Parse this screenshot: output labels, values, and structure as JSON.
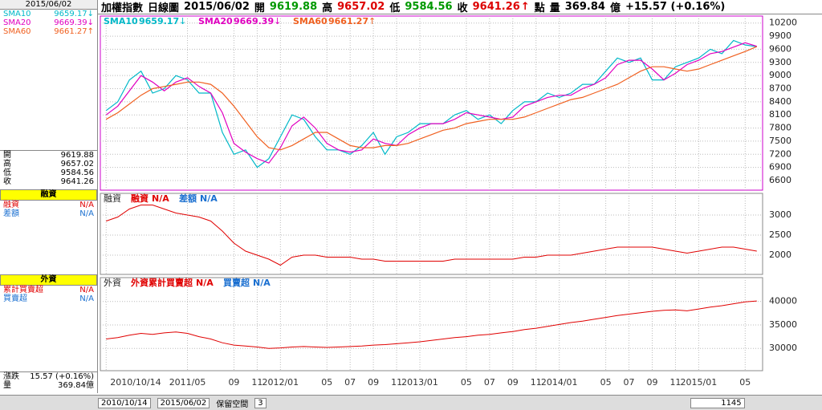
{
  "header": {
    "date": "2015/06/02",
    "open_label": "開",
    "open": 9619.88,
    "high_label": "高",
    "high": 9657.02,
    "low_label": "低",
    "low": 9584.56,
    "close_label": "收",
    "close": 9641.26,
    "close_arrow": "↑",
    "unit": "點",
    "volume_label": "量",
    "volume": 369.84,
    "volume_unit": "億",
    "change": "+15.57 (+0.16%)",
    "period": "日線圖"
  },
  "sidebar": {
    "date": "2015/06/02",
    "sma": [
      {
        "name": "SMA10",
        "value": 9659.17,
        "arrow": "↓"
      },
      {
        "name": "SMA20",
        "value": 9669.39,
        "arrow": "↓"
      },
      {
        "name": "SMA60",
        "value": 9661.27,
        "arrow": "↑"
      }
    ],
    "ohlc": [
      {
        "label": "開",
        "value": 9619.88
      },
      {
        "label": "高",
        "value": 9657.02
      },
      {
        "label": "低",
        "value": 9584.56
      },
      {
        "label": "收",
        "value": 9641.26
      }
    ],
    "margin_title": "融資",
    "margin_rows": [
      {
        "label": "融資",
        "value": "N/A"
      },
      {
        "label": "差額",
        "value": "N/A"
      }
    ],
    "foreign_title": "外資",
    "foreign_rows": [
      {
        "label": "累計買賣超",
        "value": "N/A"
      },
      {
        "label": "買賣超",
        "value": "N/A"
      }
    ],
    "change_label": "漲跌",
    "change": "15.57 (+0.16%)",
    "volume_label": "量",
    "volume": "369.84億"
  },
  "chart_data": [
    {
      "type": "line",
      "title": "加權指數",
      "categories": [
        "2010/10/14",
        null,
        null,
        null,
        null,
        null,
        null,
        "2011/05",
        null,
        null,
        null,
        "09",
        null,
        "11",
        null,
        "2012/01",
        null,
        null,
        null,
        "05",
        null,
        "07",
        null,
        "09",
        null,
        "11",
        null,
        "2013/01",
        null,
        null,
        null,
        "05",
        null,
        "07",
        null,
        "09",
        null,
        "11",
        null,
        "2014/01",
        null,
        null,
        null,
        "05",
        null,
        "07",
        null,
        "09",
        null,
        "11",
        null,
        "2015/01",
        null,
        null,
        null,
        "05",
        null
      ],
      "ylim": [
        6380,
        10360
      ],
      "yticks": [
        6600,
        6900,
        7200,
        7500,
        7800,
        8100,
        8400,
        8700,
        9000,
        9300,
        9600,
        9900,
        10200
      ],
      "grid": true,
      "series": [
        {
          "name": "SMA10",
          "color": "#00b8c8",
          "arrow": "↓",
          "values": [
            8200,
            8400,
            8900,
            9100,
            8600,
            8700,
            9000,
            8900,
            8600,
            8600,
            7700,
            7200,
            7300,
            6900,
            7100,
            7600,
            8100,
            8000,
            7600,
            7300,
            7300,
            7200,
            7400,
            7700,
            7200,
            7600,
            7700,
            7900,
            7900,
            7900,
            8100,
            8200,
            8000,
            8100,
            7900,
            8200,
            8400,
            8400,
            8600,
            8500,
            8600,
            8800,
            8800,
            9100,
            9400,
            9300,
            9400,
            8900,
            8900,
            9200,
            9300,
            9400,
            9600,
            9500,
            9800,
            9700,
            9659.17
          ]
        },
        {
          "name": "SMA20",
          "color": "#e000c0",
          "arrow": "↓",
          "values": [
            8100,
            8300,
            8650,
            9000,
            8850,
            8650,
            8850,
            8950,
            8750,
            8600,
            8150,
            7450,
            7250,
            7100,
            7000,
            7350,
            7850,
            8050,
            7800,
            7450,
            7300,
            7250,
            7300,
            7550,
            7450,
            7400,
            7650,
            7800,
            7900,
            7900,
            8000,
            8150,
            8100,
            8050,
            8000,
            8050,
            8300,
            8400,
            8500,
            8550,
            8550,
            8700,
            8800,
            8950,
            9250,
            9350,
            9350,
            9150,
            8900,
            9050,
            9250,
            9350,
            9500,
            9550,
            9650,
            9750,
            9669.39
          ]
        },
        {
          "name": "SMA60",
          "color": "#f06020",
          "arrow": "↑",
          "values": [
            8000,
            8150,
            8350,
            8550,
            8700,
            8750,
            8800,
            8850,
            8850,
            8800,
            8600,
            8300,
            7950,
            7600,
            7350,
            7300,
            7400,
            7550,
            7700,
            7700,
            7550,
            7400,
            7350,
            7350,
            7400,
            7400,
            7450,
            7550,
            7650,
            7750,
            7800,
            7900,
            7950,
            8000,
            8000,
            8000,
            8050,
            8150,
            8250,
            8350,
            8450,
            8500,
            8600,
            8700,
            8800,
            8950,
            9100,
            9200,
            9200,
            9150,
            9100,
            9150,
            9250,
            9350,
            9450,
            9550,
            9661.27
          ]
        }
      ]
    },
    {
      "type": "line",
      "title": "融資",
      "ylim": [
        1520,
        3540
      ],
      "yticks": [
        2000,
        2500,
        3000
      ],
      "grid": true,
      "series": [
        {
          "name": "融資",
          "color": "#e00000",
          "status": "N/A",
          "values": [
            2850,
            2950,
            3150,
            3250,
            3250,
            3150,
            3050,
            3000,
            2950,
            2850,
            2600,
            2300,
            2100,
            2000,
            1900,
            1750,
            1950,
            2000,
            2000,
            1950,
            1950,
            1950,
            1900,
            1900,
            1850,
            1850,
            1850,
            1850,
            1850,
            1850,
            1900,
            1900,
            1900,
            1900,
            1900,
            1900,
            1950,
            1950,
            2000,
            2000,
            2000,
            2050,
            2100,
            2150,
            2200,
            2200,
            2200,
            2200,
            2150,
            2100,
            2050,
            2100,
            2150,
            2200,
            2200,
            2150,
            2100
          ]
        },
        {
          "name": "差額",
          "color": "#1a6fd0",
          "status": "N/A"
        }
      ]
    },
    {
      "type": "line",
      "title": "外資",
      "ylim": [
        25250,
        45080
      ],
      "yticks": [
        30000,
        35000,
        40000
      ],
      "grid": true,
      "series": [
        {
          "name": "外資累計買賣超",
          "color": "#e00000",
          "status": "N/A",
          "values": [
            32000,
            32300,
            32800,
            33200,
            33000,
            33300,
            33500,
            33200,
            32500,
            32000,
            31200,
            30700,
            30500,
            30300,
            30000,
            30100,
            30300,
            30400,
            30300,
            30200,
            30300,
            30400,
            30500,
            30700,
            30800,
            31000,
            31200,
            31400,
            31700,
            32000,
            32300,
            32500,
            32800,
            33000,
            33300,
            33600,
            34000,
            34300,
            34700,
            35100,
            35500,
            35800,
            36200,
            36600,
            37000,
            37300,
            37600,
            37900,
            38100,
            38200,
            38000,
            38400,
            38800,
            39100,
            39500,
            39900,
            40100
          ]
        },
        {
          "name": "買賣超",
          "color": "#1a6fd0",
          "status": "N/A"
        }
      ]
    }
  ],
  "footer": {
    "start": "2010/10/14",
    "end": "2015/06/02",
    "reserve_label": "保留空間",
    "reserve": 3,
    "count": 1145
  }
}
